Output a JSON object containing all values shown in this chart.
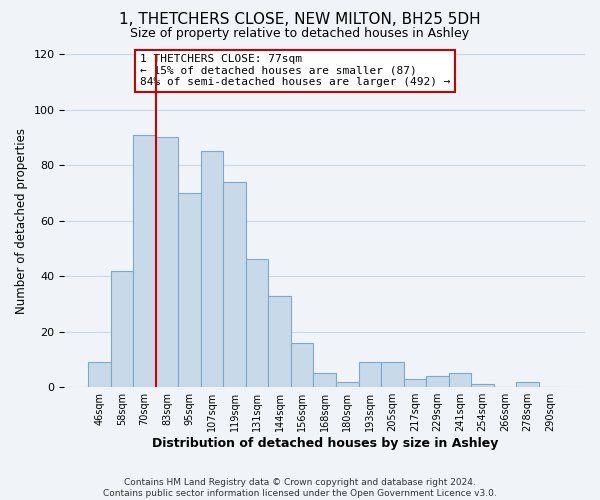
{
  "title": "1, THETCHERS CLOSE, NEW MILTON, BH25 5DH",
  "subtitle": "Size of property relative to detached houses in Ashley",
  "xlabel": "Distribution of detached houses by size in Ashley",
  "ylabel": "Number of detached properties",
  "bin_labels": [
    "46sqm",
    "58sqm",
    "70sqm",
    "83sqm",
    "95sqm",
    "107sqm",
    "119sqm",
    "131sqm",
    "144sqm",
    "156sqm",
    "168sqm",
    "180sqm",
    "193sqm",
    "205sqm",
    "217sqm",
    "229sqm",
    "241sqm",
    "254sqm",
    "266sqm",
    "278sqm",
    "290sqm"
  ],
  "bar_heights": [
    9,
    42,
    91,
    90,
    70,
    85,
    74,
    46,
    33,
    16,
    5,
    2,
    9,
    9,
    3,
    4,
    5,
    1,
    0,
    2,
    0
  ],
  "bar_color": "#c8daea",
  "bar_edge_color": "#7aaacb",
  "vline_color": "#cc0000",
  "annotation_text_line1": "1 THETCHERS CLOSE: 77sqm",
  "annotation_text_line2": "← 15% of detached houses are smaller (87)",
  "annotation_text_line3": "84% of semi-detached houses are larger (492) →",
  "ylim": [
    0,
    120
  ],
  "yticks": [
    0,
    20,
    40,
    60,
    80,
    100,
    120
  ],
  "footer": "Contains HM Land Registry data © Crown copyright and database right 2024.\nContains public sector information licensed under the Open Government Licence v3.0.",
  "bg_color": "#f0f4f8",
  "grid_color": "#c8d8e8",
  "vline_bin_index": 2
}
